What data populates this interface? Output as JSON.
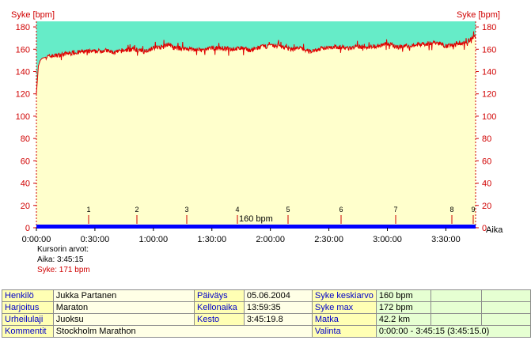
{
  "chart_data": {
    "type": "area",
    "ylabel_left": "Syke [bpm]",
    "ylabel_right": "Syke [bpm]",
    "xlabel": "Aika",
    "ylim": [
      0,
      185
    ],
    "y_ticks": [
      "0",
      "20",
      "40",
      "60",
      "80",
      "100",
      "120",
      "140",
      "160",
      "180"
    ],
    "x_ticks": [
      "0:00:00",
      "0:30:00",
      "1:00:00",
      "1:30:00",
      "2:00:00",
      "2:30:00",
      "3:00:00",
      "3:30:00"
    ],
    "x_tick_minutes": [
      0,
      30,
      60,
      90,
      120,
      150,
      180,
      210
    ],
    "x_max_minutes": 225.25,
    "lap_marks": [
      {
        "label": "1",
        "minute": 31
      },
      {
        "label": "2",
        "minute": 60
      },
      {
        "label": "3",
        "minute": 89
      },
      {
        "label": "4",
        "minute": 118.5
      },
      {
        "label": "5",
        "minute": 148
      },
      {
        "label": "6",
        "minute": 178
      },
      {
        "label": "7",
        "minute": 209
      },
      {
        "label": "8",
        "minute": 239
      },
      {
        "label": "9",
        "minute": 250
      }
    ],
    "cursor_label": "160 bpm",
    "series": [
      {
        "name": "Syke",
        "x_minutes": [
          0,
          1,
          2,
          3,
          5,
          8,
          12,
          15,
          20,
          25,
          30,
          35,
          40,
          45,
          50,
          55,
          60,
          65,
          68,
          70,
          75,
          80,
          85,
          90,
          95,
          100,
          105,
          110,
          115,
          120,
          125,
          130,
          135,
          140,
          145,
          150,
          155,
          160,
          165,
          170,
          175,
          180,
          185,
          190,
          195,
          200,
          205,
          210,
          215,
          220,
          223,
          225.25
        ],
        "y_bpm": [
          120,
          145,
          150,
          152,
          153,
          154,
          155,
          156,
          157,
          158,
          158,
          159,
          157,
          159,
          160,
          158,
          161,
          162,
          165,
          161,
          161,
          160,
          159,
          161,
          161,
          160,
          161,
          159,
          162,
          163,
          163,
          160,
          161,
          158,
          160,
          162,
          162,
          161,
          162,
          162,
          163,
          165,
          162,
          163,
          164,
          165,
          166,
          163,
          164,
          166,
          169,
          171
        ]
      }
    ],
    "colors": {
      "above": "#66ecc8",
      "below": "#ffffcc",
      "line": "#e00000",
      "axis_text": "#d00000",
      "timeline": "#0000ff"
    }
  },
  "cursor": {
    "title": "Kursorin arvot:",
    "time": "Aika: 3:45:15",
    "hr": "Syke: 171 bpm"
  },
  "info": {
    "person_label": "Henkilö",
    "person": "Jukka Partanen",
    "exercise_label": "Harjoitus",
    "exercise": "Maraton",
    "sport_label": "Urheilulaji",
    "sport": "Juoksu",
    "comment_label": "Kommentit",
    "comment": "Stockholm Marathon",
    "date_label": "Päiväys",
    "date": "05.06.2004",
    "clock_label": "Kellonaika",
    "clock": "13:59:35",
    "duration_label": "Kesto",
    "duration": "3:45:19.8",
    "hr_avg_label": "Syke keskiarvo",
    "hr_avg": "160 bpm",
    "hr_max_label": "Syke max",
    "hr_max": "172 bpm",
    "distance_label": "Matka",
    "distance": "42.2 km",
    "selection_label": "Valinta",
    "selection": "0:00:00 - 3:45:15 (3:45:15.0)"
  }
}
